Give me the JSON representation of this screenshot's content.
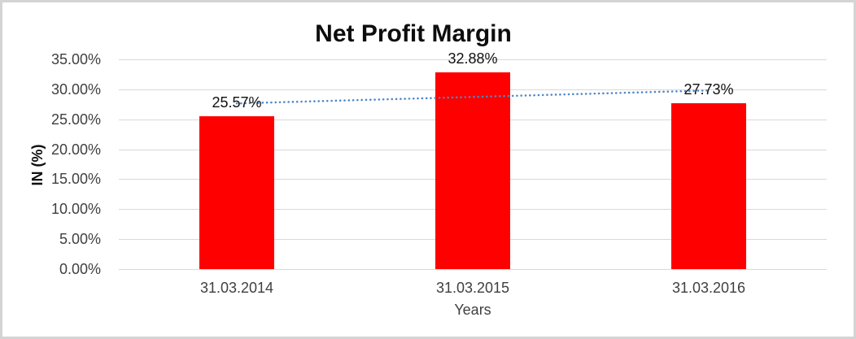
{
  "chart_data": {
    "type": "bar",
    "title": "Net Profit Margin",
    "xlabel": "Years",
    "ylabel": "IN (%)",
    "categories": [
      "31.03.2014",
      "31.03.2015",
      "31.03.2016"
    ],
    "values": [
      25.57,
      32.88,
      27.73
    ],
    "data_labels": [
      "25.57%",
      "32.88%",
      "27.73%"
    ],
    "yticks": [
      {
        "value": 35,
        "label": "35.00%"
      },
      {
        "value": 30,
        "label": "30.00%"
      },
      {
        "value": 25,
        "label": "25.00%"
      },
      {
        "value": 20,
        "label": "20.00%"
      },
      {
        "value": 15,
        "label": "15.00%"
      },
      {
        "value": 10,
        "label": "10.00%"
      },
      {
        "value": 5,
        "label": "5.00%"
      },
      {
        "value": 0,
        "label": "0.00%"
      }
    ],
    "ylim": [
      0,
      35
    ],
    "grid": true,
    "legend": "none",
    "bar_color": "#ff0000",
    "gridline_color": "#d9d9d9",
    "trendline": {
      "type": "linear",
      "style": "dotted",
      "color": "#4e86c8"
    }
  }
}
